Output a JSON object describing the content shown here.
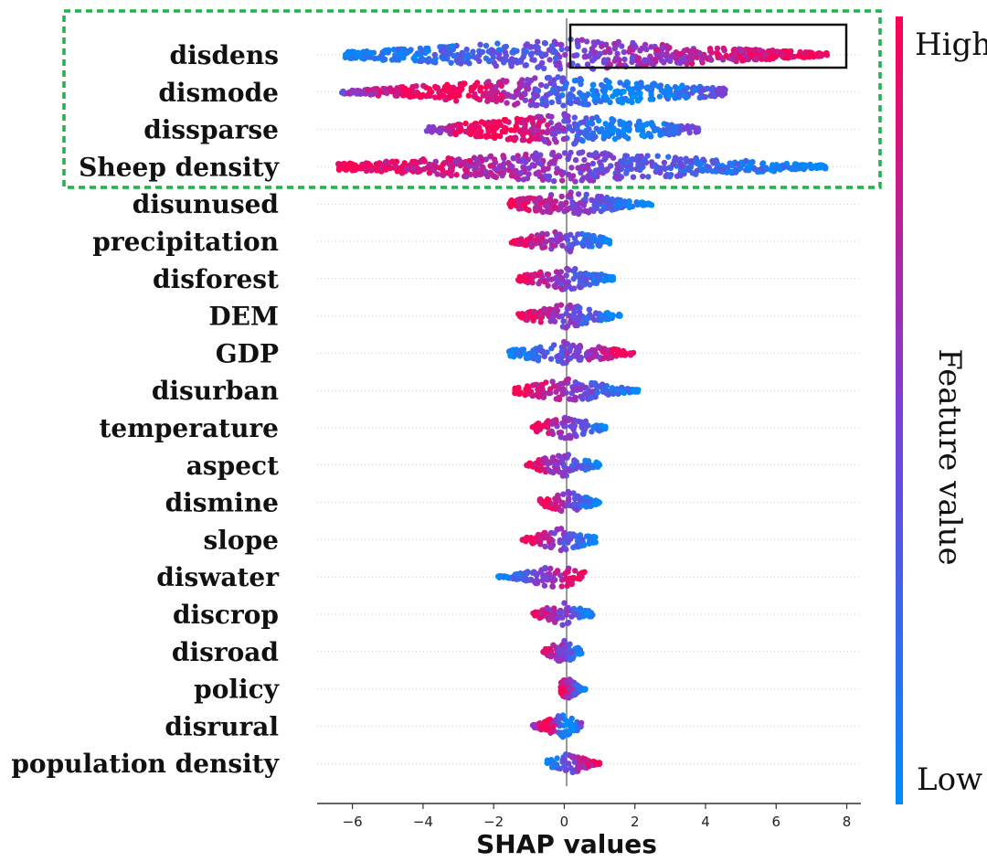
{
  "chart_data": {
    "type": "scatter",
    "subtype": "shap-beeswarm",
    "xlabel": "SHAP values",
    "xlim": [
      -7,
      8.4
    ],
    "xticks": [
      -6,
      -4,
      -2,
      0,
      2,
      4,
      6,
      8
    ],
    "xtick_labels": [
      "−6",
      "−4",
      "−2",
      "0",
      "2",
      "4",
      "6",
      "8"
    ],
    "grid": "dotted horizontal row guides",
    "features": [
      {
        "name": "disdens",
        "shap_min": -6.2,
        "shap_max": 7.5,
        "high_value_side": "positive"
      },
      {
        "name": "dismode",
        "shap_min": -6.3,
        "shap_max": 4.6,
        "high_value_side": "mixed"
      },
      {
        "name": "dissparse",
        "shap_min": -3.9,
        "shap_max": 3.8,
        "high_value_side": "mixed"
      },
      {
        "name": "Sheep density",
        "shap_min": -6.4,
        "shap_max": 7.4,
        "high_value_side": "negative"
      },
      {
        "name": "disunused",
        "shap_min": -1.6,
        "shap_max": 2.5,
        "high_value_side": "negative"
      },
      {
        "name": "precipitation",
        "shap_min": -1.5,
        "shap_max": 1.3,
        "high_value_side": "negative"
      },
      {
        "name": "disforest",
        "shap_min": -1.3,
        "shap_max": 1.4,
        "high_value_side": "negative"
      },
      {
        "name": "DEM",
        "shap_min": -1.3,
        "shap_max": 1.6,
        "high_value_side": "negative"
      },
      {
        "name": "GDP",
        "shap_min": -1.6,
        "shap_max": 2.0,
        "high_value_side": "positive"
      },
      {
        "name": "disurban",
        "shap_min": -1.4,
        "shap_max": 2.1,
        "high_value_side": "negative"
      },
      {
        "name": "temperature",
        "shap_min": -0.9,
        "shap_max": 1.2,
        "high_value_side": "negative"
      },
      {
        "name": "aspect",
        "shap_min": -1.1,
        "shap_max": 1.0,
        "high_value_side": "negative"
      },
      {
        "name": "dismine",
        "shap_min": -0.7,
        "shap_max": 1.0,
        "high_value_side": "negative"
      },
      {
        "name": "slope",
        "shap_min": -1.2,
        "shap_max": 0.9,
        "high_value_side": "negative"
      },
      {
        "name": "diswater",
        "shap_min": -1.9,
        "shap_max": 0.6,
        "high_value_side": "positive"
      },
      {
        "name": "discrop",
        "shap_min": -0.9,
        "shap_max": 0.8,
        "high_value_side": "negative"
      },
      {
        "name": "disroad",
        "shap_min": -0.6,
        "shap_max": 0.5,
        "high_value_side": "negative"
      },
      {
        "name": "policy",
        "shap_min": -0.1,
        "shap_max": 0.6,
        "high_value_side": "negative"
      },
      {
        "name": "disrural",
        "shap_min": -0.9,
        "shap_max": 0.5,
        "high_value_side": "mixed"
      },
      {
        "name": "population density",
        "shap_min": -0.5,
        "shap_max": 1.0,
        "high_value_side": "positive"
      }
    ],
    "colorbar": {
      "title": "Feature value",
      "high_label": "High",
      "low_label": "Low",
      "high_color": "#ff0052",
      "low_color": "#008bfb"
    }
  }
}
